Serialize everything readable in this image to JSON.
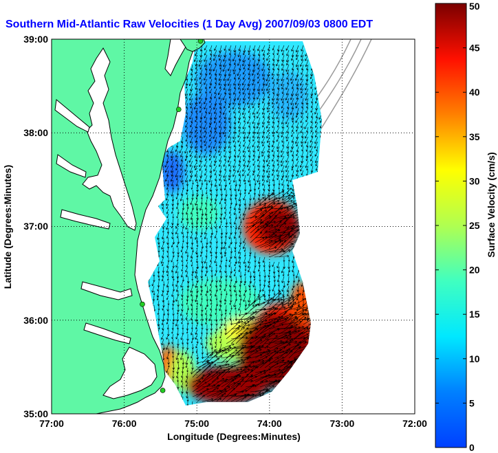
{
  "title": "Southern Mid-Atlantic Raw Velocities (1 Day Avg) 2007/09/03 0800 EDT",
  "colors": {
    "land": "#5ff7a5",
    "coastline": "#000000",
    "bathymetry": "#9a9a9a",
    "arrows": "#000000",
    "stations": "#22cc22",
    "title": "#0000ff"
  },
  "map": {
    "lon_range": [
      -77,
      -72
    ],
    "lat_range": [
      35,
      39
    ],
    "x_ticks": [
      "77:00",
      "76:00",
      "75:00",
      "74:00",
      "73:00",
      "72:00"
    ],
    "y_ticks": [
      "39:00",
      "38:00",
      "37:00",
      "36:00",
      "35:00"
    ],
    "xlabel": "Longitude (Degrees:Minutes)",
    "ylabel": "Latitude (Degrees:Minutes)",
    "grid": "dotted",
    "stations": [
      {
        "lon": -74.95,
        "lat": 38.98
      },
      {
        "lon": -75.25,
        "lat": 38.25
      },
      {
        "lon": -75.75,
        "lat": 36.17
      },
      {
        "lon": -75.47,
        "lat": 35.25
      }
    ]
  },
  "colorbar": {
    "label": "Surface Velocity (cm/s)",
    "min": 0,
    "max": 50,
    "ticks": [
      "0",
      "5",
      "10",
      "15",
      "20",
      "25",
      "30",
      "35",
      "40",
      "45",
      "50"
    ]
  }
}
